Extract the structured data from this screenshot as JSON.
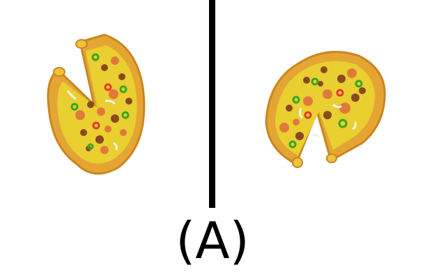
{
  "figure": {
    "label": "(A)"
  },
  "panels": [
    {
      "name": "left-pizza",
      "description_icon": "pizza-icon"
    },
    {
      "name": "right-pizza",
      "description_icon": "pizza-icon"
    }
  ],
  "colors": {
    "background": "#ffffff",
    "divider": "#000000",
    "crust": "#e4a534",
    "crust_dark": "#c9861f",
    "cheese": "#e9cf2f",
    "pepperoni": "#e07a3a",
    "sausage": "#8a4a1e",
    "pepper_green": "#3aa51f",
    "pepper_red": "#e23b2a",
    "onion": "#f2f2e8"
  }
}
